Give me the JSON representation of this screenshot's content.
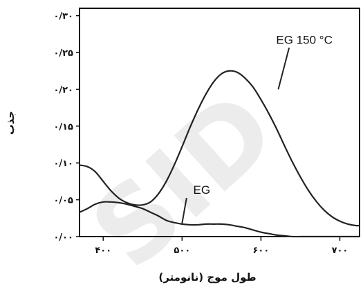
{
  "chart_data": {
    "type": "line",
    "xlabel": "طول موج (نانومتر)",
    "ylabel": "جذب",
    "xlim": [
      370,
      725
    ],
    "ylim": [
      0,
      0.31
    ],
    "xticks": [
      400,
      500,
      600,
      700
    ],
    "xtick_labels": [
      "۴۰۰",
      "۵۰۰",
      "۶۰۰",
      "۷۰۰"
    ],
    "yticks": [
      0,
      0.05,
      0.1,
      0.15,
      0.2,
      0.25,
      0.3
    ],
    "ytick_labels": [
      "۰/۰۰",
      "۰/۰۵",
      "۰/۱۰",
      "۰/۱۵",
      "۰/۲۰",
      "۰/۲۵",
      "۰/۳۰"
    ],
    "grid": false,
    "series": [
      {
        "name": "EG 150 °C",
        "x": [
          370,
          380,
          390,
          400,
          410,
          420,
          430,
          440,
          450,
          460,
          470,
          480,
          490,
          500,
          510,
          520,
          530,
          540,
          550,
          560,
          570,
          580,
          590,
          600,
          610,
          620,
          630,
          640,
          650,
          660,
          670,
          680,
          690,
          700,
          710,
          720,
          725
        ],
        "y": [
          0.097,
          0.095,
          0.088,
          0.075,
          0.062,
          0.052,
          0.046,
          0.043,
          0.043,
          0.047,
          0.058,
          0.075,
          0.097,
          0.122,
          0.148,
          0.172,
          0.193,
          0.21,
          0.221,
          0.225,
          0.223,
          0.215,
          0.203,
          0.186,
          0.167,
          0.146,
          0.123,
          0.101,
          0.081,
          0.063,
          0.048,
          0.036,
          0.027,
          0.021,
          0.017,
          0.015,
          0.015
        ]
      },
      {
        "name": "EG",
        "x": [
          370,
          380,
          390,
          400,
          410,
          420,
          430,
          440,
          450,
          460,
          470,
          480,
          490,
          500,
          510,
          520,
          530,
          540,
          550,
          560,
          570,
          580,
          590,
          600,
          610,
          620,
          630,
          640,
          650,
          660,
          670,
          680,
          690,
          700,
          710,
          720,
          725
        ],
        "y": [
          0.033,
          0.038,
          0.044,
          0.047,
          0.047,
          0.046,
          0.044,
          0.041,
          0.038,
          0.033,
          0.028,
          0.022,
          0.019,
          0.017,
          0.016,
          0.016,
          0.017,
          0.017,
          0.017,
          0.016,
          0.014,
          0.012,
          0.009,
          0.006,
          0.004,
          0.002,
          0.001,
          0.0,
          0.0,
          0.0,
          0.0,
          0.0,
          0.0,
          0.0,
          0.0,
          0.0,
          0.0
        ]
      }
    ],
    "annotations": [
      {
        "text": "EG 150 °C",
        "x": 655,
        "y": 0.262,
        "arrow_to": [
          622,
          0.2
        ]
      },
      {
        "text": "EG",
        "x": 525,
        "y": 0.058,
        "arrow_to": [
          500,
          0.018
        ]
      }
    ],
    "watermark": "SID"
  }
}
